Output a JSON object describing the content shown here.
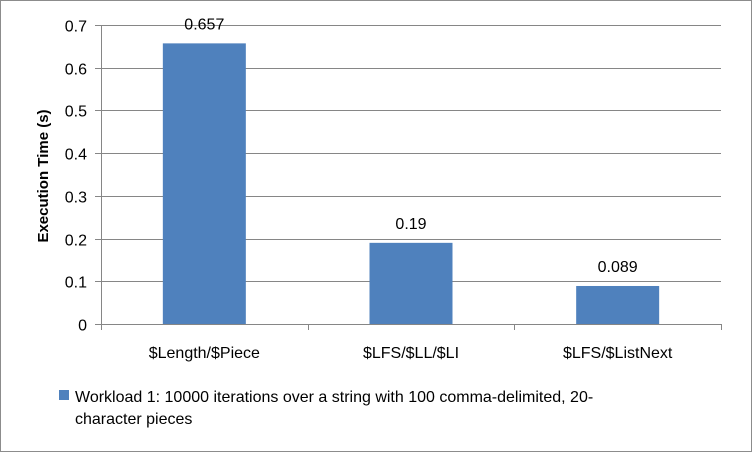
{
  "chart_data": {
    "type": "bar",
    "categories": [
      "$Length/$Piece",
      "$LFS/$LL/$LI",
      "$LFS/$ListNext"
    ],
    "series": [
      {
        "name": "Workload 1: 10000 iterations over a string with 100 comma-delimited, 20-character pieces",
        "legend_lines": [
          "Workload 1: 10000 iterations over a string with 100 comma-delimited, 20-",
          "character pieces"
        ],
        "values": [
          0.657,
          0.19,
          0.089
        ],
        "data_labels": [
          "0.657",
          "0.19",
          "0.089"
        ],
        "color": "#4f81bd"
      }
    ],
    "title": "",
    "xlabel": "",
    "ylabel": "Execution Time (s)",
    "ylim": [
      0,
      0.7
    ],
    "yticks": [
      0,
      0.1,
      0.2,
      0.3,
      0.4,
      0.5,
      0.6,
      0.7
    ],
    "ytick_labels": [
      "0",
      "0.1",
      "0.2",
      "0.3",
      "0.4",
      "0.5",
      "0.6",
      "0.7"
    ],
    "grid": true,
    "gridline_color": "#868686",
    "legend_position": "bottom"
  }
}
